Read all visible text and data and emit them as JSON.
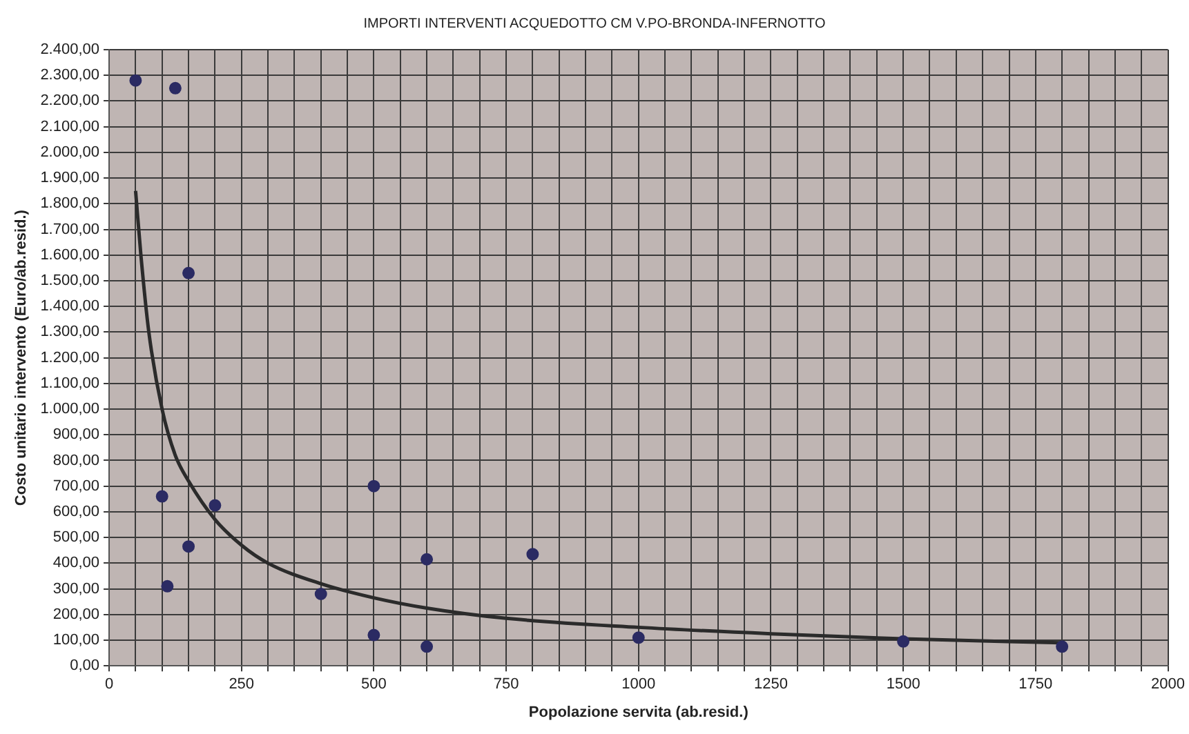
{
  "chart_data": {
    "type": "scatter",
    "title": "IMPORTI INTERVENTI ACQUEDOTTO CM V.PO-BRONDA-INFERNOTTO",
    "xlabel": "Popolazione servita (ab.resid.)",
    "ylabel": "Costo unitario intervento (Euro/ab.resid.)",
    "xlim": [
      0,
      2000
    ],
    "xticks": [
      {
        "value": 0,
        "label": "0"
      },
      {
        "value": 50,
        "label": null
      },
      {
        "value": 100,
        "label": null
      },
      {
        "value": 150,
        "label": null
      },
      {
        "value": 200,
        "label": null
      },
      {
        "value": 250,
        "label": "250"
      },
      {
        "value": 300,
        "label": null
      },
      {
        "value": 350,
        "label": null
      },
      {
        "value": 400,
        "label": null
      },
      {
        "value": 450,
        "label": null
      },
      {
        "value": 500,
        "label": "500"
      },
      {
        "value": 550,
        "label": null
      },
      {
        "value": 600,
        "label": null
      },
      {
        "value": 650,
        "label": null
      },
      {
        "value": 700,
        "label": null
      },
      {
        "value": 750,
        "label": "750"
      },
      {
        "value": 800,
        "label": null
      },
      {
        "value": 850,
        "label": null
      },
      {
        "value": 900,
        "label": null
      },
      {
        "value": 950,
        "label": null
      },
      {
        "value": 1000,
        "label": "1000"
      },
      {
        "value": 1050,
        "label": null
      },
      {
        "value": 1100,
        "label": null
      },
      {
        "value": 1150,
        "label": null
      },
      {
        "value": 1200,
        "label": null
      },
      {
        "value": 1250,
        "label": "1250"
      },
      {
        "value": 1300,
        "label": null
      },
      {
        "value": 1350,
        "label": null
      },
      {
        "value": 1400,
        "label": null
      },
      {
        "value": 1450,
        "label": null
      },
      {
        "value": 1500,
        "label": "1500"
      },
      {
        "value": 1550,
        "label": null
      },
      {
        "value": 1600,
        "label": null
      },
      {
        "value": 1650,
        "label": null
      },
      {
        "value": 1700,
        "label": null
      },
      {
        "value": 1750,
        "label": "1750"
      },
      {
        "value": 1800,
        "label": null
      },
      {
        "value": 1850,
        "label": null
      },
      {
        "value": 1900,
        "label": null
      },
      {
        "value": 1950,
        "label": null
      },
      {
        "value": 2000,
        "label": "2000"
      }
    ],
    "ylim": [
      0,
      2400
    ],
    "yticks": [
      {
        "value": 0,
        "label": "0,00"
      },
      {
        "value": 100,
        "label": "100,00"
      },
      {
        "value": 200,
        "label": "200,00"
      },
      {
        "value": 300,
        "label": "300,00"
      },
      {
        "value": 400,
        "label": "400,00"
      },
      {
        "value": 500,
        "label": "500,00"
      },
      {
        "value": 600,
        "label": "600,00"
      },
      {
        "value": 700,
        "label": "700,00"
      },
      {
        "value": 800,
        "label": "800,00"
      },
      {
        "value": 900,
        "label": "900,00"
      },
      {
        "value": 1000,
        "label": "1.000,00"
      },
      {
        "value": 1100,
        "label": "1.100,00"
      },
      {
        "value": 1200,
        "label": "1.200,00"
      },
      {
        "value": 1300,
        "label": "1.300,00"
      },
      {
        "value": 1400,
        "label": "1.400,00"
      },
      {
        "value": 1500,
        "label": "1.500,00"
      },
      {
        "value": 1600,
        "label": "1.600,00"
      },
      {
        "value": 1700,
        "label": "1.700,00"
      },
      {
        "value": 1800,
        "label": "1.800,00"
      },
      {
        "value": 1900,
        "label": "1.900,00"
      },
      {
        "value": 2000,
        "label": "2.000,00"
      },
      {
        "value": 2100,
        "label": "2.100,00"
      },
      {
        "value": 2200,
        "label": "2.200,00"
      },
      {
        "value": 2300,
        "label": "2.300,00"
      },
      {
        "value": 2400,
        "label": "2.400,00"
      }
    ],
    "grid": true,
    "legend": false,
    "series": [
      {
        "marker": "circle",
        "color": "#2b2b63",
        "x": [
          50,
          125,
          150,
          100,
          110,
          150,
          200,
          400,
          500,
          500,
          600,
          600,
          800,
          1000,
          1500,
          1800
        ],
        "values": [
          2280,
          2250,
          1530,
          660,
          310,
          465,
          625,
          280,
          700,
          120,
          415,
          75,
          435,
          110,
          95,
          75
        ]
      },
      {
        "type": "line",
        "marker": "none",
        "color": "#2b2b2b",
        "x": [
          50,
          60,
          75,
          100,
          125,
          150,
          200,
          250,
          300,
          400,
          500,
          600,
          750,
          1000,
          1250,
          1500,
          1800
        ],
        "values": [
          1850,
          1600,
          1300,
          1000,
          820,
          720,
          570,
          470,
          400,
          320,
          265,
          225,
          185,
          150,
          125,
          105,
          90
        ]
      }
    ]
  }
}
